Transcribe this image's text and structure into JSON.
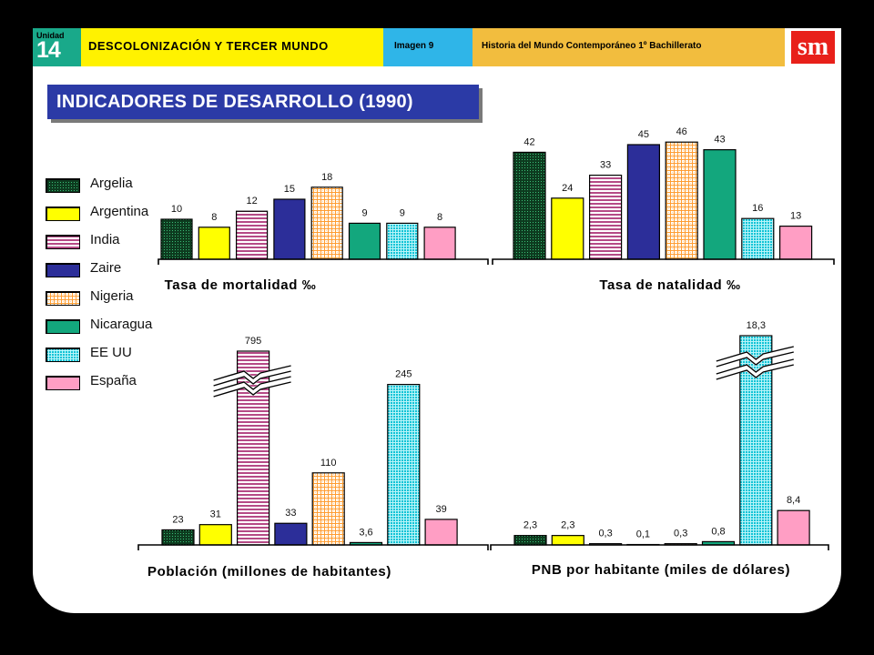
{
  "header": {
    "unit_label": "Unidad",
    "unit_number": "14",
    "unit_title": "DESCOLONIZACIÓN Y TERCER MUNDO",
    "image_label": "Imagen 9",
    "course": "Historia del Mundo Contemporáneo 1º Bachillerato",
    "logo": "sm"
  },
  "page_title": "INDICADORES DE DESARROLLO (1990)",
  "colors": {
    "Argelia": "#0e4a25",
    "Argentina": "#ffff00",
    "India": "#b54a86",
    "Zaire": "#2c2e99",
    "Nigeria": "#ff9c30",
    "Nicaragua": "#13a77d",
    "EE UU": "#10c3d6",
    "España": "#ff9ec4"
  },
  "legend": [
    "Argelia",
    "Argentina",
    "India",
    "Zaire",
    "Nigeria",
    "Nicaragua",
    "EE UU",
    "España"
  ],
  "chart_data": [
    {
      "type": "bar",
      "title": "Tasa de mortalidad ‰",
      "categories": [
        "Argelia",
        "Argentina",
        "India",
        "Zaire",
        "Nigeria",
        "Nicaragua",
        "EE UU",
        "España"
      ],
      "values": [
        10,
        8,
        12,
        15,
        18,
        9,
        9,
        8
      ],
      "labels": [
        "10",
        "8",
        "12",
        "15",
        "18",
        "9",
        "9",
        "8"
      ]
    },
    {
      "type": "bar",
      "title": "Tasa de natalidad ‰",
      "categories": [
        "Argelia",
        "Argentina",
        "India",
        "Zaire",
        "Nigeria",
        "Nicaragua",
        "EE UU",
        "España"
      ],
      "values": [
        42,
        24,
        33,
        45,
        46,
        43,
        16,
        13
      ],
      "labels": [
        "42",
        "24",
        "33",
        "45",
        "46",
        "43",
        "16",
        "13"
      ]
    },
    {
      "type": "bar",
      "title": "Población (millones de habitantes)",
      "categories": [
        "Argelia",
        "Argentina",
        "India",
        "Zaire",
        "Nigeria",
        "Nicaragua",
        "EE UU",
        "España"
      ],
      "values": [
        23,
        31,
        795,
        33,
        110,
        3.6,
        245,
        39
      ],
      "labels": [
        "23",
        "31",
        "795",
        "33",
        "110",
        "3,6",
        "245",
        "39"
      ],
      "axis_break": "India"
    },
    {
      "type": "bar",
      "title": "PNB por habitante (miles de dólares)",
      "categories": [
        "Argelia",
        "Argentina",
        "India",
        "Zaire",
        "Nigeria",
        "Nicaragua",
        "EE UU",
        "España"
      ],
      "values": [
        2.3,
        2.3,
        0.3,
        0.1,
        0.3,
        0.8,
        18.3,
        8.4
      ],
      "labels": [
        "2,3",
        "2,3",
        "0,3",
        "0,1",
        "0,3",
        "0,8",
        "18,3",
        "8,4"
      ],
      "axis_break": "EE UU"
    }
  ]
}
